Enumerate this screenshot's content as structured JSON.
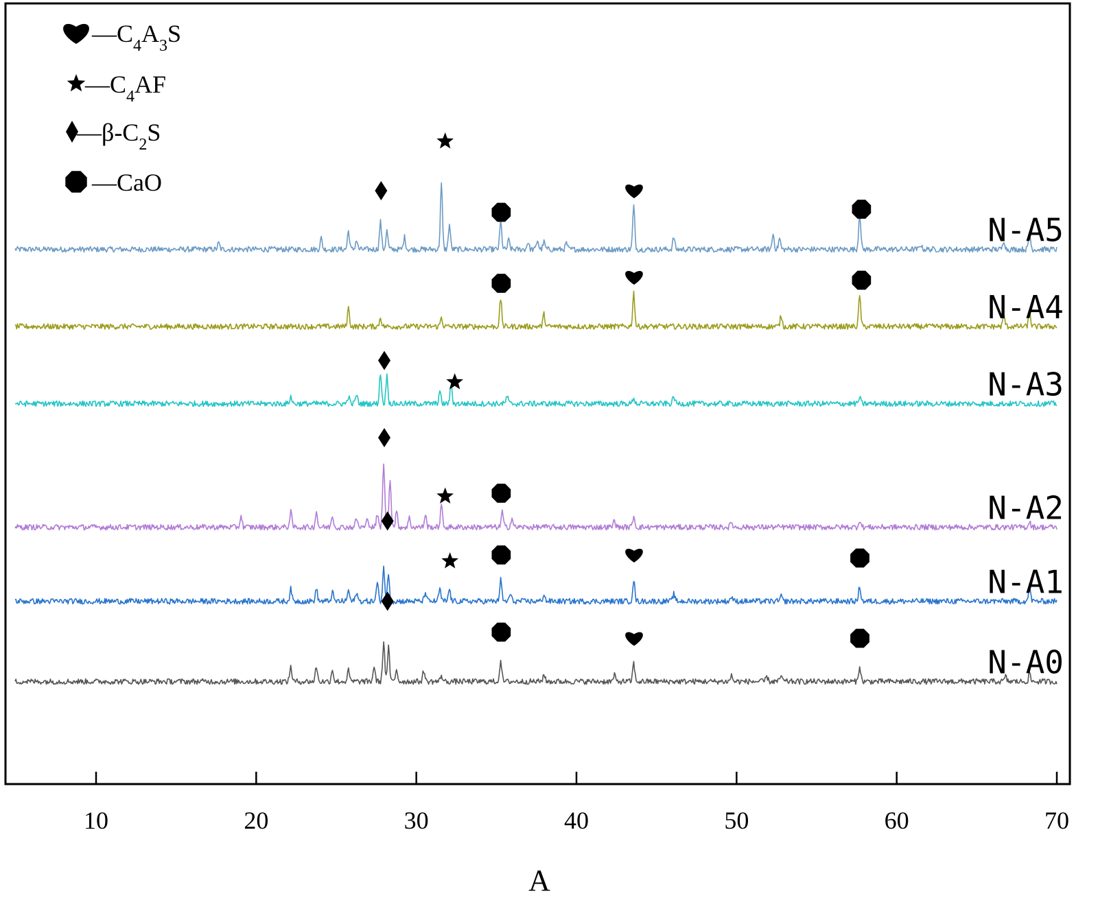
{
  "chart_data": {
    "type": "line",
    "title": "",
    "xlabel": "A",
    "ylabel": "",
    "xlim": [
      5,
      70
    ],
    "x_ticks": [
      10,
      20,
      30,
      40,
      50,
      60,
      70
    ],
    "x_tick_labels": [
      "10",
      "20",
      "30",
      "40",
      "50",
      "60",
      "70"
    ],
    "grid": false,
    "legend": {
      "placement": "top-left",
      "entries": [
        {
          "marker": "heart-icon",
          "dash": "—",
          "base": "C",
          "sub1": "4",
          "mid": "A",
          "sub2": "3",
          "tail": "S"
        },
        {
          "marker": "star-icon",
          "dash": "—",
          "base": "C",
          "sub1": "4",
          "mid": "AF",
          "sub2": "",
          "tail": ""
        },
        {
          "marker": "diamond-icon",
          "dash": "—",
          "base": "β-C",
          "sub1": "2",
          "mid": "S",
          "sub2": "",
          "tail": ""
        },
        {
          "marker": "octagon-icon",
          "dash": "—",
          "base": "CaO",
          "sub1": "",
          "mid": "",
          "sub2": "",
          "tail": ""
        }
      ]
    },
    "series": [
      {
        "name": "N-A5",
        "color": "#6b9ac4",
        "baseline": 5.35,
        "peaks": [
          [
            17.7,
            0.1
          ],
          [
            24.1,
            0.18
          ],
          [
            25.8,
            0.3
          ],
          [
            26.3,
            0.15
          ],
          [
            27.8,
            0.45
          ],
          [
            28.2,
            0.3
          ],
          [
            29.3,
            0.2
          ],
          [
            31.6,
            1.05
          ],
          [
            32.1,
            0.4
          ],
          [
            35.3,
            0.45
          ],
          [
            35.8,
            0.15
          ],
          [
            37.0,
            0.12
          ],
          [
            37.6,
            0.15
          ],
          [
            38.0,
            0.12
          ],
          [
            39.4,
            0.1
          ],
          [
            43.6,
            0.7
          ],
          [
            46.1,
            0.2
          ],
          [
            52.3,
            0.25
          ],
          [
            52.7,
            0.18
          ],
          [
            57.7,
            0.6
          ],
          [
            61.5,
            0.08
          ],
          [
            66.7,
            0.15
          ],
          [
            68.3,
            0.25
          ]
        ],
        "markers": [
          {
            "type": "diamond-icon",
            "x": 27.8,
            "level": 6.3
          },
          {
            "type": "star-icon",
            "x": 31.8,
            "level": 7.1
          },
          {
            "type": "octagon-icon",
            "x": 35.3,
            "level": 5.95
          },
          {
            "type": "heart-icon",
            "x": 43.6,
            "level": 6.3
          },
          {
            "type": "octagon-icon",
            "x": 57.8,
            "level": 6.0
          }
        ]
      },
      {
        "name": "N-A4",
        "color": "#9b9c1c",
        "baseline": 4.1,
        "peaks": [
          [
            25.8,
            0.3
          ],
          [
            27.8,
            0.15
          ],
          [
            31.6,
            0.15
          ],
          [
            35.3,
            0.45
          ],
          [
            38.0,
            0.2
          ],
          [
            43.6,
            0.55
          ],
          [
            52.8,
            0.18
          ],
          [
            57.7,
            0.5
          ],
          [
            66.7,
            0.18
          ],
          [
            68.3,
            0.25
          ]
        ],
        "markers": [
          {
            "type": "octagon-icon",
            "x": 35.3,
            "level": 4.8
          },
          {
            "type": "heart-icon",
            "x": 43.6,
            "level": 4.9
          },
          {
            "type": "octagon-icon",
            "x": 57.8,
            "level": 4.85
          }
        ]
      },
      {
        "name": "N-A3",
        "color": "#22c4c4",
        "baseline": 2.85,
        "peaks": [
          [
            22.2,
            0.12
          ],
          [
            25.8,
            0.12
          ],
          [
            26.3,
            0.15
          ],
          [
            27.8,
            0.5
          ],
          [
            28.2,
            0.45
          ],
          [
            31.5,
            0.2
          ],
          [
            32.2,
            0.3
          ],
          [
            35.7,
            0.12
          ],
          [
            43.6,
            0.1
          ],
          [
            46.1,
            0.12
          ],
          [
            57.7,
            0.1
          ]
        ],
        "markers": [
          {
            "type": "diamond-icon",
            "x": 28.0,
            "level": 3.55
          },
          {
            "type": "star-icon",
            "x": 32.4,
            "level": 3.2
          }
        ]
      },
      {
        "name": "N-A2",
        "color": "#b07cd6",
        "baseline": 0.85,
        "peaks": [
          [
            19.1,
            0.18
          ],
          [
            22.2,
            0.25
          ],
          [
            23.8,
            0.25
          ],
          [
            24.8,
            0.2
          ],
          [
            26.3,
            0.15
          ],
          [
            27.0,
            0.15
          ],
          [
            27.6,
            0.2
          ],
          [
            28.0,
            1.05
          ],
          [
            28.4,
            0.8
          ],
          [
            28.8,
            0.25
          ],
          [
            29.6,
            0.15
          ],
          [
            30.6,
            0.2
          ],
          [
            31.6,
            0.35
          ],
          [
            35.4,
            0.25
          ],
          [
            36.0,
            0.15
          ],
          [
            42.4,
            0.12
          ],
          [
            43.6,
            0.18
          ],
          [
            49.7,
            0.08
          ],
          [
            57.7,
            0.12
          ],
          [
            68.3,
            0.1
          ]
        ],
        "markers": [
          {
            "type": "diamond-icon",
            "x": 28.0,
            "level": 2.3
          },
          {
            "type": "star-icon",
            "x": 31.8,
            "level": 1.35
          },
          {
            "type": "octagon-icon",
            "x": 35.3,
            "level": 1.4
          }
        ]
      },
      {
        "name": "N-A1",
        "color": "#2874cc",
        "baseline": -0.35,
        "peaks": [
          [
            22.2,
            0.2
          ],
          [
            23.8,
            0.2
          ],
          [
            24.8,
            0.15
          ],
          [
            25.8,
            0.18
          ],
          [
            26.3,
            0.15
          ],
          [
            27.6,
            0.3
          ],
          [
            28.0,
            0.55
          ],
          [
            28.3,
            0.45
          ],
          [
            30.6,
            0.15
          ],
          [
            31.5,
            0.2
          ],
          [
            32.1,
            0.2
          ],
          [
            35.3,
            0.35
          ],
          [
            35.9,
            0.12
          ],
          [
            38.0,
            0.12
          ],
          [
            43.6,
            0.35
          ],
          [
            46.1,
            0.12
          ],
          [
            49.7,
            0.08
          ],
          [
            52.8,
            0.08
          ],
          [
            57.7,
            0.25
          ],
          [
            68.3,
            0.25
          ]
        ],
        "markers": [
          {
            "type": "diamond-icon",
            "x": 28.2,
            "level": 0.95
          },
          {
            "type": "star-icon",
            "x": 32.1,
            "level": 0.3
          },
          {
            "type": "octagon-icon",
            "x": 35.3,
            "level": 0.4
          },
          {
            "type": "heart-icon",
            "x": 43.6,
            "level": 0.4
          },
          {
            "type": "octagon-icon",
            "x": 57.7,
            "level": 0.35
          }
        ]
      },
      {
        "name": "N-A0",
        "color": "#555555",
        "baseline": -1.65,
        "peaks": [
          [
            22.2,
            0.25
          ],
          [
            23.8,
            0.25
          ],
          [
            24.8,
            0.2
          ],
          [
            25.8,
            0.18
          ],
          [
            27.4,
            0.25
          ],
          [
            28.0,
            0.65
          ],
          [
            28.3,
            0.55
          ],
          [
            28.8,
            0.2
          ],
          [
            30.5,
            0.18
          ],
          [
            31.6,
            0.1
          ],
          [
            35.3,
            0.35
          ],
          [
            38.0,
            0.12
          ],
          [
            42.4,
            0.1
          ],
          [
            43.6,
            0.3
          ],
          [
            49.7,
            0.1
          ],
          [
            51.9,
            0.08
          ],
          [
            52.8,
            0.1
          ],
          [
            57.7,
            0.25
          ],
          [
            66.8,
            0.08
          ],
          [
            68.3,
            0.12
          ]
        ],
        "markers": [
          {
            "type": "diamond-icon",
            "x": 28.2,
            "level": -0.35
          },
          {
            "type": "octagon-icon",
            "x": 35.3,
            "level": -0.85
          },
          {
            "type": "heart-icon",
            "x": 43.6,
            "level": -0.95
          },
          {
            "type": "octagon-icon",
            "x": 57.7,
            "level": -0.95
          }
        ]
      }
    ]
  }
}
